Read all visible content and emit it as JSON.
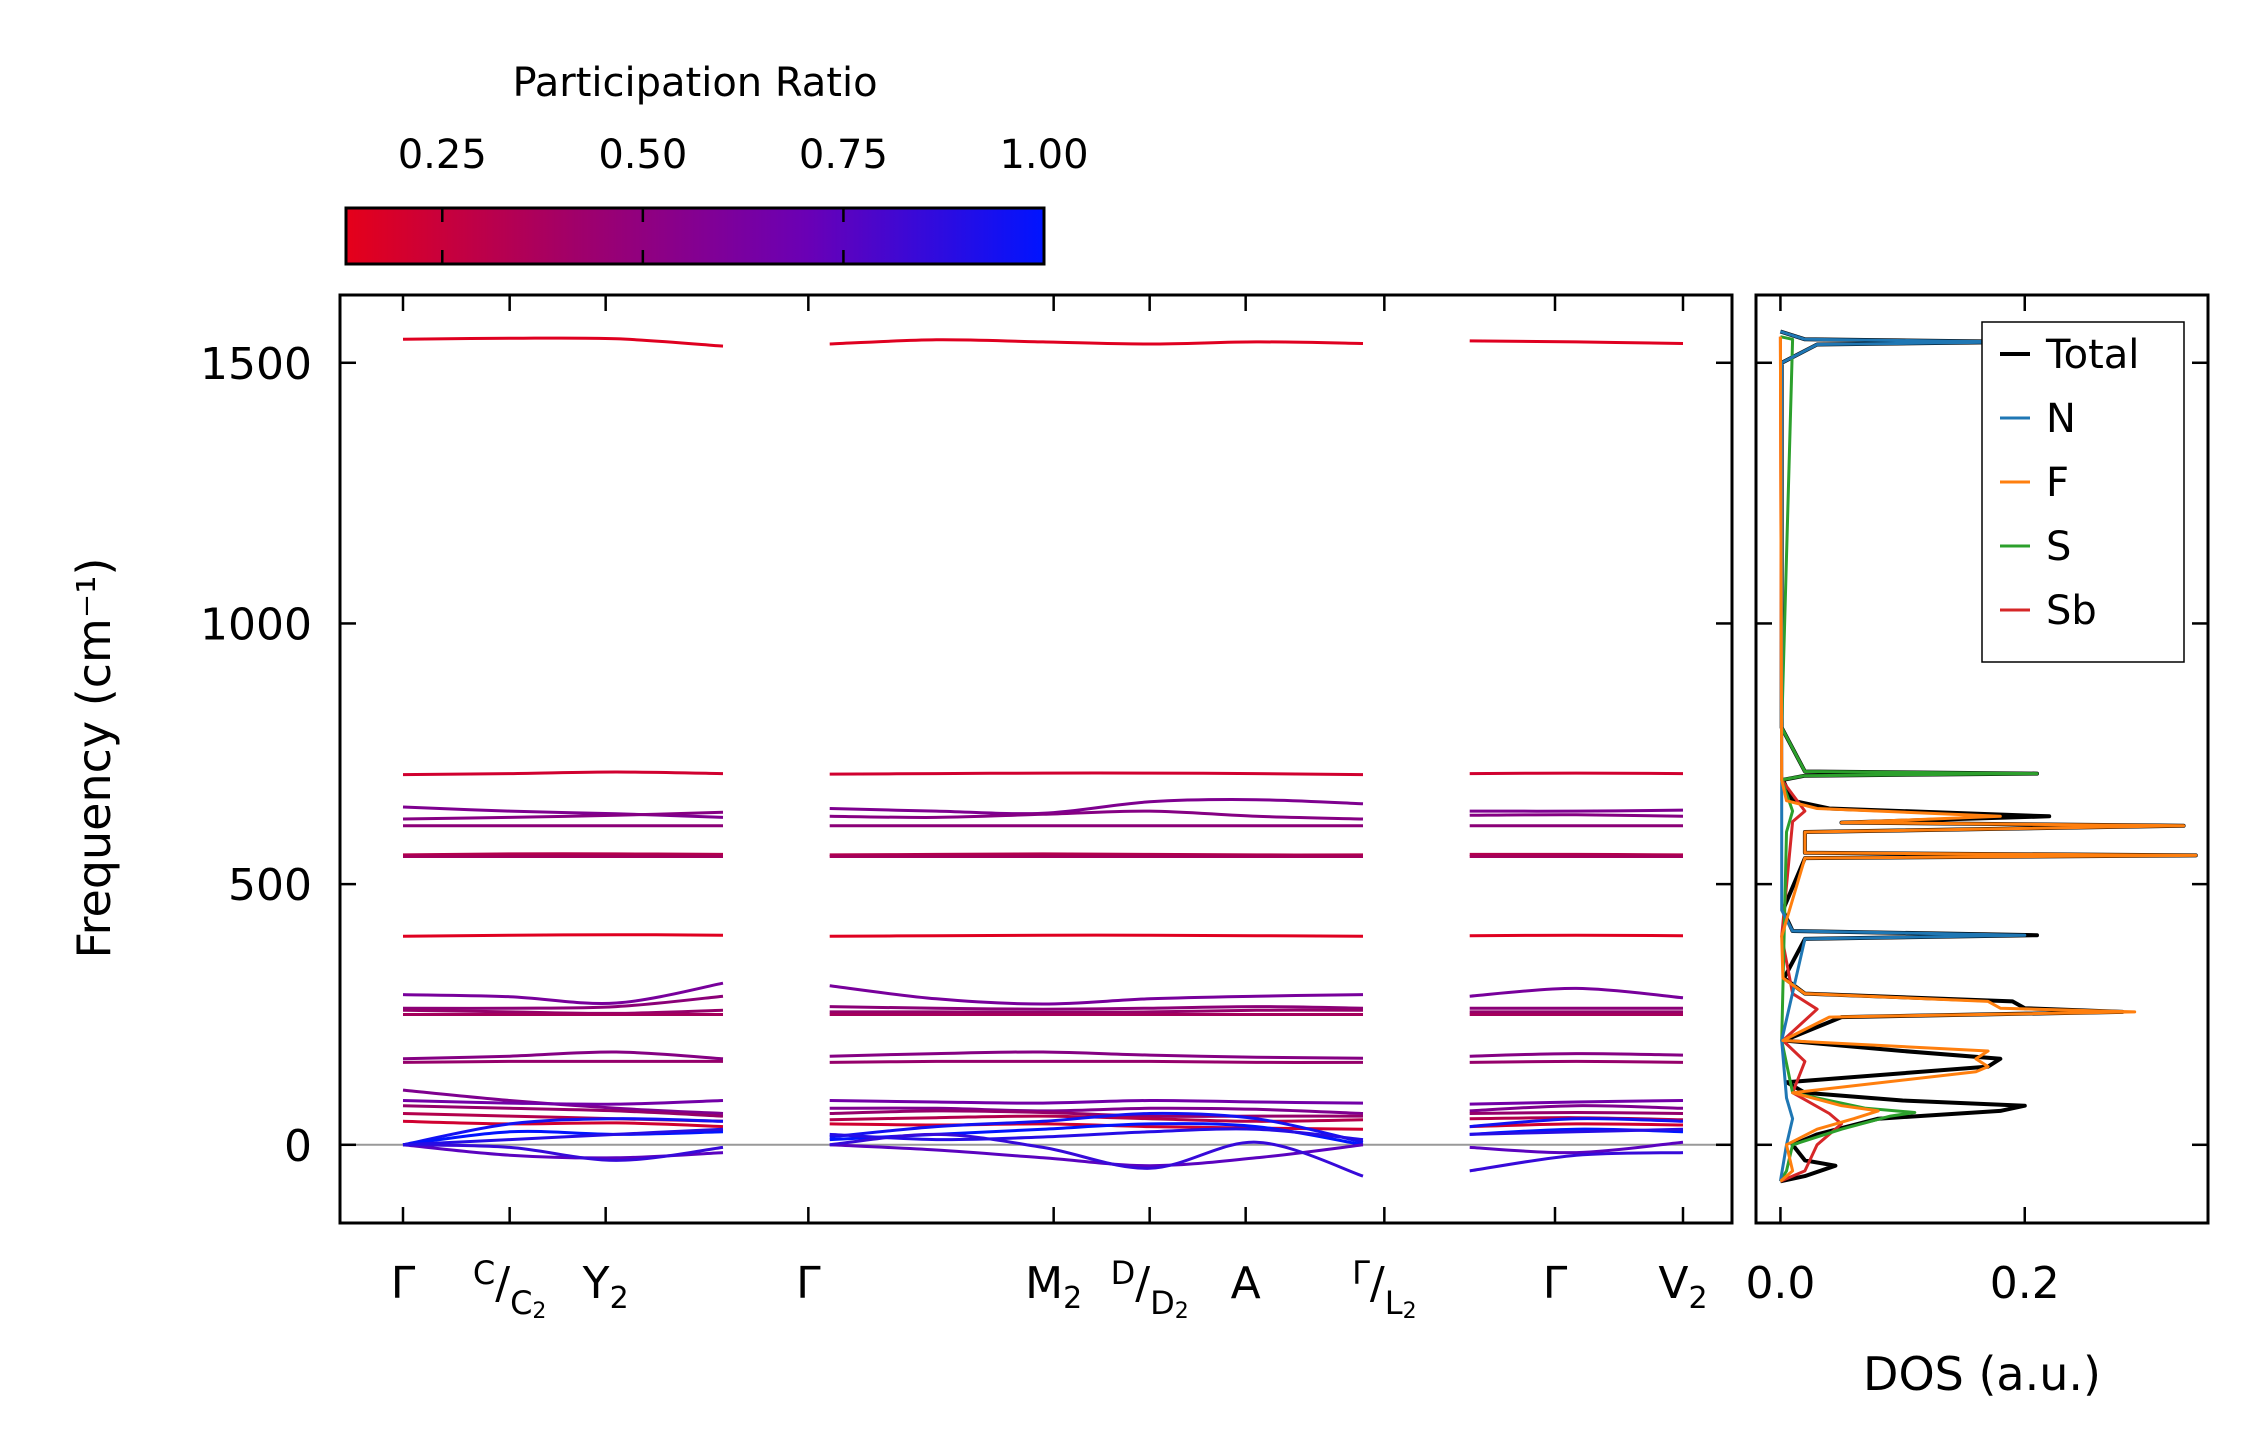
{
  "chart_data": [
    {
      "type": "line",
      "subtype": "phonon-band-structure",
      "ylabel": "Frequency (cm⁻¹)",
      "ylim": [
        -150,
        1630
      ],
      "yticks": [
        0,
        500,
        1000,
        1500
      ],
      "ytick_labels": [
        "0",
        "500",
        "1000",
        "1500"
      ],
      "zero_line": true,
      "high_symmetry_points": [
        {
          "label": "Γ",
          "position": 0.0
        },
        {
          "label": "C",
          "sub_label": "C",
          "sub_index": "2",
          "style": "split",
          "position": 0.5
        },
        {
          "label": "Y",
          "sub_index": "2",
          "position": 0.95
        },
        {
          "label": "Γ",
          "position": 1.9
        },
        {
          "label": "M",
          "sub_index": "2",
          "position": 3.05
        },
        {
          "label": "D",
          "sub_label": "D",
          "sub_index": "2",
          "style": "split",
          "position": 3.5
        },
        {
          "label": "A",
          "position": 3.95
        },
        {
          "label": "Γ",
          "sub_label": "L",
          "sub_index": "2",
          "style": "split",
          "position": 4.6
        },
        {
          "label": "Γ",
          "position": 5.4
        },
        {
          "label": "V",
          "sub_index": "2",
          "position": 6.0
        }
      ],
      "segments": [
        [
          0.0,
          1.9
        ],
        [
          1.9,
          4.6
        ],
        [
          4.6,
          6.0
        ]
      ],
      "colorbar": {
        "title": "Participation Ratio",
        "range": [
          0.13,
          1.0
        ],
        "ticks": [
          0.25,
          0.5,
          0.75,
          1.0
        ],
        "tick_labels": [
          "0.25",
          "0.50",
          "0.75",
          "1.00"
        ],
        "colors": [
          "#e5001a",
          "#8f0070",
          "#6a00b5",
          "#0014ff"
        ]
      },
      "bands": [
        {
          "values": [
            1545,
            1547,
            1546,
            1532,
            1536,
            1544,
            1540,
            1536,
            1540,
            1537,
            1542,
            1540,
            1537
          ],
          "pr": 0.15
        },
        {
          "values": [
            710,
            712,
            715,
            712,
            711,
            712,
            713,
            713,
            712,
            710,
            712,
            713,
            712
          ],
          "pr": 0.2
        },
        {
          "values": [
            648,
            640,
            635,
            628,
            645,
            640,
            636,
            658,
            662,
            654,
            640,
            640,
            642
          ],
          "pr": 0.55
        },
        {
          "values": [
            625,
            628,
            632,
            638,
            630,
            628,
            634,
            640,
            630,
            625,
            632,
            633,
            630
          ],
          "pr": 0.5
        },
        {
          "values": [
            612,
            612,
            612,
            612,
            612,
            612,
            612,
            612,
            612,
            612,
            612,
            612,
            612
          ],
          "pr": 0.45
        },
        {
          "values": [
            556,
            558,
            558,
            557,
            556,
            557,
            558,
            557,
            556,
            556,
            557,
            557,
            556
          ],
          "pr": 0.3
        },
        {
          "values": [
            553,
            553,
            553,
            553,
            553,
            553,
            553,
            553,
            553,
            553,
            553,
            553,
            553
          ],
          "pr": 0.35
        },
        {
          "values": [
            400,
            402,
            403,
            402,
            400,
            401,
            402,
            402,
            401,
            400,
            401,
            402,
            401
          ],
          "pr": 0.15
        },
        {
          "values": [
            288,
            284,
            272,
            310,
            305,
            280,
            270,
            280,
            285,
            288,
            285,
            300,
            282
          ],
          "pr": 0.6
        },
        {
          "values": [
            262,
            262,
            265,
            285,
            265,
            262,
            260,
            262,
            265,
            262,
            262,
            262,
            262
          ],
          "pr": 0.45
        },
        {
          "values": [
            258,
            255,
            252,
            258,
            255,
            255,
            254,
            255,
            258,
            258,
            255,
            255,
            255
          ],
          "pr": 0.4
        },
        {
          "values": [
            250,
            250,
            250,
            250,
            250,
            250,
            250,
            250,
            250,
            250,
            250,
            250,
            250
          ],
          "pr": 0.35
        },
        {
          "values": [
            165,
            170,
            178,
            165,
            170,
            175,
            178,
            172,
            168,
            166,
            170,
            175,
            172
          ],
          "pr": 0.5
        },
        {
          "values": [
            158,
            160,
            160,
            160,
            158,
            160,
            160,
            160,
            158,
            158,
            158,
            160,
            158
          ],
          "pr": 0.4
        },
        {
          "values": [
            105,
            85,
            70,
            60,
            70,
            70,
            65,
            70,
            68,
            60,
            65,
            75,
            70
          ],
          "pr": 0.55
        },
        {
          "values": [
            85,
            80,
            78,
            85,
            85,
            82,
            80,
            85,
            82,
            80,
            78,
            82,
            85
          ],
          "pr": 0.65
        },
        {
          "values": [
            75,
            70,
            65,
            55,
            60,
            65,
            62,
            55,
            55,
            55,
            60,
            62,
            60
          ],
          "pr": 0.4
        },
        {
          "values": [
            60,
            55,
            50,
            45,
            48,
            52,
            55,
            50,
            45,
            48,
            50,
            52,
            48
          ],
          "pr": 0.3
        },
        {
          "values": [
            45,
            40,
            42,
            35,
            40,
            38,
            40,
            35,
            32,
            30,
            35,
            40,
            38
          ],
          "pr": 0.2
        },
        {
          "values": [
            0,
            40,
            50,
            45,
            15,
            35,
            45,
            60,
            50,
            5,
            35,
            50,
            45
          ],
          "pr": 0.95
        },
        {
          "values": [
            0,
            25,
            20,
            25,
            10,
            20,
            30,
            40,
            35,
            0,
            20,
            30,
            25
          ],
          "pr": 1.0
        },
        {
          "values": [
            0,
            -20,
            -25,
            -15,
            0,
            -10,
            -25,
            -40,
            -25,
            0,
            -5,
            -15,
            5
          ],
          "pr": 0.75
        },
        {
          "values": [
            0,
            -5,
            -30,
            -5,
            0,
            20,
            -5,
            -45,
            5,
            -60,
            -50,
            -20,
            -15
          ],
          "pr": 0.85
        },
        {
          "values": [
            0,
            10,
            20,
            30,
            20,
            10,
            15,
            25,
            30,
            10,
            20,
            25,
            30
          ],
          "pr": 0.9
        }
      ]
    },
    {
      "type": "line",
      "subtype": "density-of-states",
      "orientation": "horizontal",
      "xlabel": "DOS (a.u.)",
      "xlim": [
        -0.02,
        0.35
      ],
      "xticks": [
        0.0,
        0.2
      ],
      "xtick_labels": [
        "0.0",
        "0.2"
      ],
      "ylim": [
        -150,
        1630
      ],
      "legend": {
        "placement": "top-right",
        "entries": [
          "Total",
          "N",
          "F",
          "S",
          "Sb"
        ]
      },
      "series": [
        {
          "name": "Total",
          "color": "#000000",
          "points": [
            [
              -70,
              0
            ],
            [
              -60,
              0.02
            ],
            [
              -40,
              0.045
            ],
            [
              -30,
              0.02
            ],
            [
              0,
              0.01
            ],
            [
              20,
              0.03
            ],
            [
              50,
              0.08
            ],
            [
              65,
              0.18
            ],
            [
              70,
              0.19
            ],
            [
              75,
              0.2
            ],
            [
              85,
              0.1
            ],
            [
              100,
              0.02
            ],
            [
              120,
              0.005
            ],
            [
              150,
              0.17
            ],
            [
              165,
              0.18
            ],
            [
              180,
              0.1
            ],
            [
              200,
              0.003
            ],
            [
              245,
              0.05
            ],
            [
              255,
              0.28
            ],
            [
              262,
              0.2
            ],
            [
              275,
              0.19
            ],
            [
              290,
              0.02
            ],
            [
              320,
              0.003
            ],
            [
              395,
              0.02
            ],
            [
              402,
              0.21
            ],
            [
              410,
              0.01
            ],
            [
              450,
              0.002
            ],
            [
              550,
              0.02
            ],
            [
              555,
              0.34
            ],
            [
              560,
              0.02
            ],
            [
              600,
              0.02
            ],
            [
              612,
              0.33
            ],
            [
              618,
              0.05
            ],
            [
              630,
              0.22
            ],
            [
              645,
              0.04
            ],
            [
              660,
              0.01
            ],
            [
              700,
              0.002
            ],
            [
              708,
              0.02
            ],
            [
              712,
              0.21
            ],
            [
              716,
              0.02
            ],
            [
              800,
              0.001
            ],
            [
              1500,
              0.001
            ],
            [
              1535,
              0.03
            ],
            [
              1540,
              0.2
            ],
            [
              1545,
              0.02
            ],
            [
              1560,
              0.0
            ]
          ]
        },
        {
          "name": "N",
          "color": "#1f77b4",
          "points": [
            [
              -70,
              0
            ],
            [
              0,
              0.005
            ],
            [
              50,
              0.01
            ],
            [
              90,
              0.005
            ],
            [
              200,
              0.001
            ],
            [
              395,
              0.02
            ],
            [
              402,
              0.2
            ],
            [
              410,
              0.01
            ],
            [
              450,
              0.001
            ],
            [
              1500,
              0.001
            ],
            [
              1535,
              0.03
            ],
            [
              1540,
              0.19
            ],
            [
              1545,
              0.02
            ],
            [
              1560,
              0.0
            ]
          ]
        },
        {
          "name": "F",
          "color": "#ff7f0e",
          "points": [
            [
              -70,
              0
            ],
            [
              -50,
              0.01
            ],
            [
              0,
              0.005
            ],
            [
              30,
              0.03
            ],
            [
              50,
              0.06
            ],
            [
              65,
              0.08
            ],
            [
              75,
              0.05
            ],
            [
              100,
              0.01
            ],
            [
              140,
              0.16
            ],
            [
              150,
              0.17
            ],
            [
              165,
              0.16
            ],
            [
              180,
              0.17
            ],
            [
              200,
              0.002
            ],
            [
              245,
              0.04
            ],
            [
              255,
              0.29
            ],
            [
              262,
              0.18
            ],
            [
              275,
              0.17
            ],
            [
              290,
              0.02
            ],
            [
              320,
              0.002
            ],
            [
              400,
              0.001
            ],
            [
              550,
              0.02
            ],
            [
              555,
              0.34
            ],
            [
              560,
              0.02
            ],
            [
              600,
              0.02
            ],
            [
              612,
              0.33
            ],
            [
              618,
              0.05
            ],
            [
              630,
              0.18
            ],
            [
              645,
              0.03
            ],
            [
              660,
              0.005
            ],
            [
              700,
              0.001
            ],
            [
              1550,
              0.0
            ]
          ]
        },
        {
          "name": "S",
          "color": "#2ca02c",
          "points": [
            [
              -70,
              0
            ],
            [
              -50,
              0.005
            ],
            [
              0,
              0.01
            ],
            [
              30,
              0.05
            ],
            [
              55,
              0.09
            ],
            [
              62,
              0.11
            ],
            [
              70,
              0.07
            ],
            [
              100,
              0.01
            ],
            [
              200,
              0.001
            ],
            [
              600,
              0.005
            ],
            [
              640,
              0.01
            ],
            [
              700,
              0.001
            ],
            [
              708,
              0.02
            ],
            [
              712,
              0.21
            ],
            [
              716,
              0.02
            ],
            [
              800,
              0.001
            ],
            [
              1545,
              0.01
            ],
            [
              1550,
              0.0
            ]
          ]
        },
        {
          "name": "Sb",
          "color": "#d62728",
          "points": [
            [
              -70,
              0
            ],
            [
              -50,
              0.02
            ],
            [
              0,
              0.03
            ],
            [
              40,
              0.05
            ],
            [
              60,
              0.04
            ],
            [
              100,
              0.01
            ],
            [
              160,
              0.02
            ],
            [
              200,
              0.002
            ],
            [
              260,
              0.03
            ],
            [
              290,
              0.01
            ],
            [
              400,
              0.001
            ],
            [
              620,
              0.01
            ],
            [
              640,
              0.02
            ],
            [
              700,
              0.001
            ],
            [
              1550,
              0.0
            ]
          ]
        }
      ]
    }
  ]
}
